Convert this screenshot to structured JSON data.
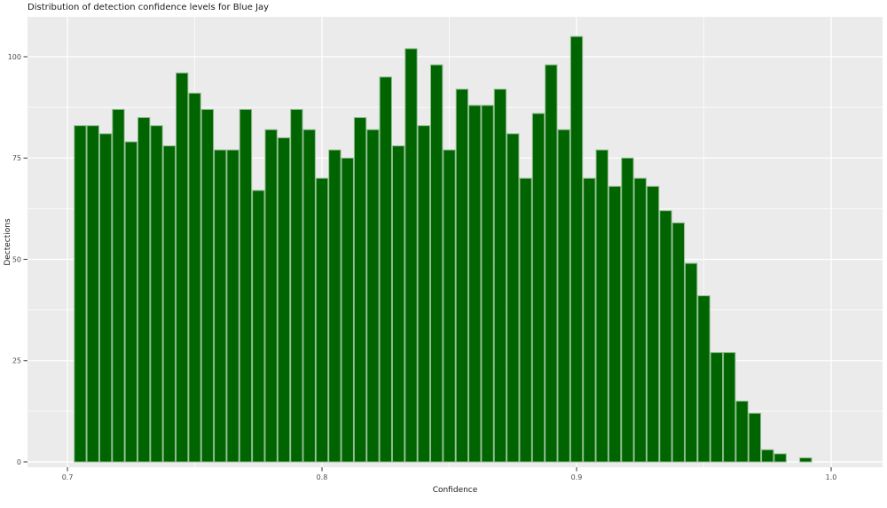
{
  "chart": {
    "title": "Distribution of detection confidence levels for Blue Jay",
    "xlabel": "Confidence",
    "ylabel": "Dectections"
  },
  "chart_data": {
    "type": "bar",
    "subtype": "histogram",
    "title": "Distribution of detection confidence levels for Blue Jay",
    "xlabel": "Confidence",
    "ylabel": "Dectections",
    "bin_start": 0.7025,
    "bin_width": 0.005,
    "values": [
      83,
      83,
      81,
      87,
      79,
      85,
      83,
      78,
      96,
      91,
      87,
      77,
      77,
      87,
      67,
      82,
      80,
      87,
      82,
      70,
      77,
      75,
      85,
      82,
      95,
      78,
      102,
      83,
      98,
      77,
      92,
      88,
      88,
      92,
      81,
      70,
      86,
      98,
      82,
      105,
      70,
      77,
      68,
      75,
      70,
      68,
      62,
      59,
      49,
      41,
      27,
      27,
      15,
      12,
      3,
      2,
      0,
      1
    ],
    "x_ticks": [
      0.7,
      0.8,
      0.9,
      1.0
    ],
    "x_tick_labels": [
      "0.7",
      "0.8",
      "0.9",
      "1.0"
    ],
    "x_minor_ticks": [
      0.75,
      0.85,
      0.95
    ],
    "y_ticks": [
      0,
      25,
      50,
      75,
      100
    ],
    "y_tick_labels": [
      "0",
      "25",
      "50",
      "75",
      "100"
    ],
    "y_minor_ticks": [
      12.5,
      37.5,
      62.5,
      87.5
    ],
    "xlim": [
      0.6843,
      1.0202
    ],
    "ylim": [
      -1.31,
      109.85
    ],
    "grid": true,
    "legend": false,
    "colors": {
      "bar_fill": "#006400",
      "bar_stroke": "#8fbc8f",
      "panel_bg": "#ebebeb",
      "grid_major": "#ffffff",
      "grid_minor": "#ffffff",
      "tick_mark": "#333333",
      "tick_label": "#4d4d4d",
      "text": "#1a1a1a",
      "page_bg": "#ffffff"
    }
  }
}
